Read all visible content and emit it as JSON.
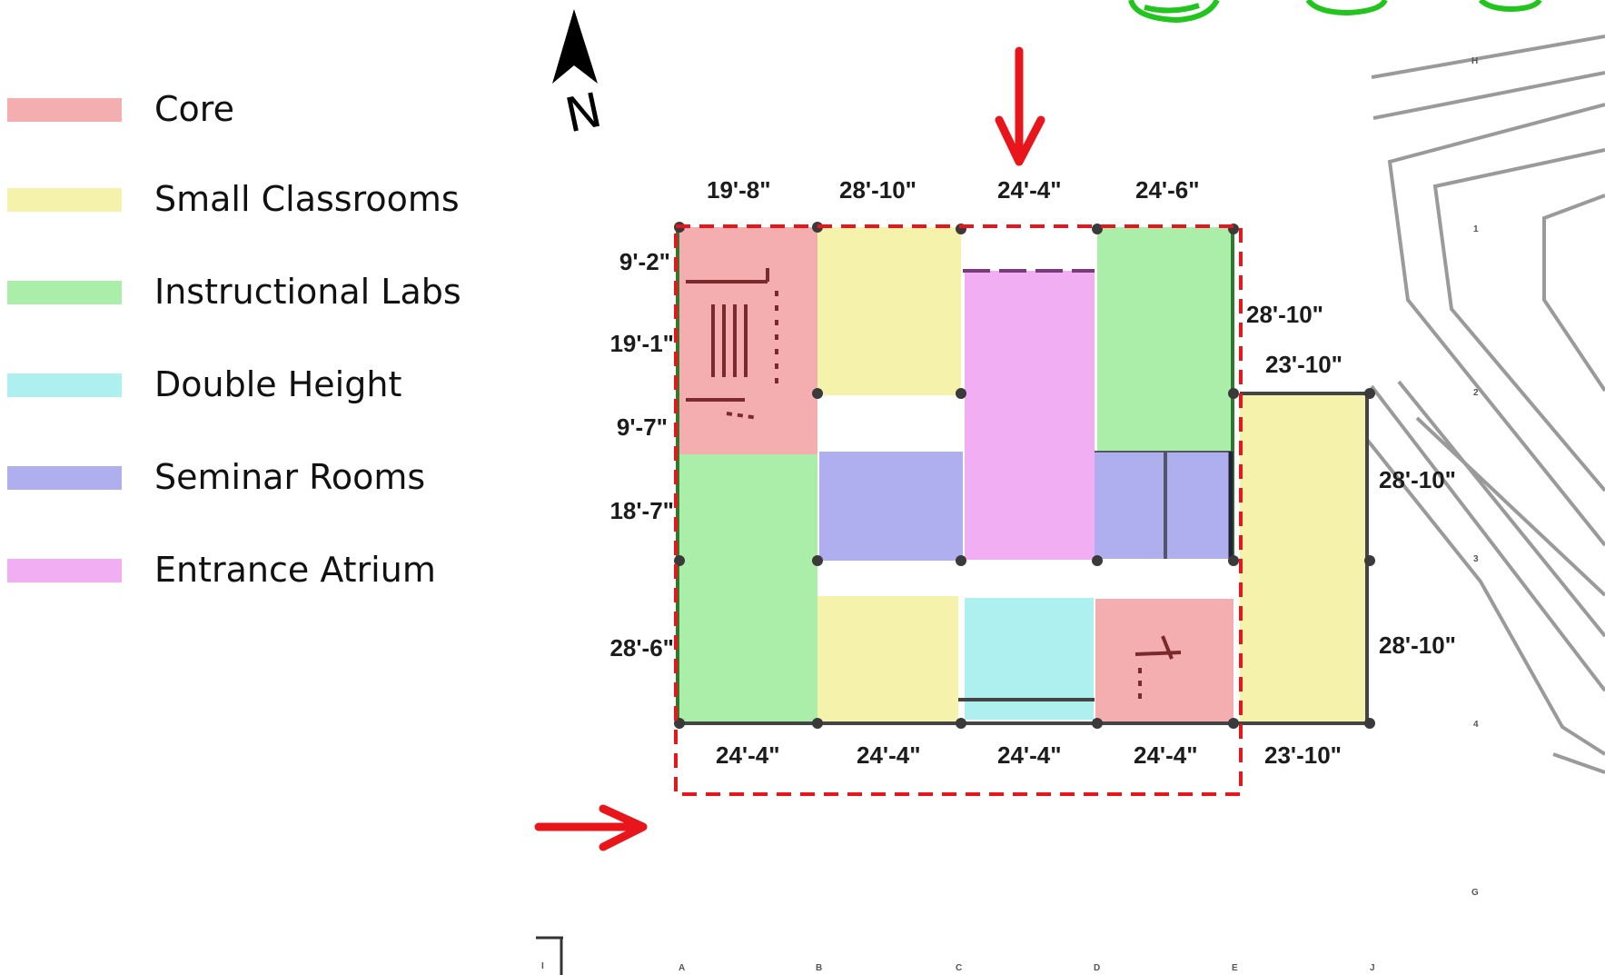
{
  "legend": {
    "items": [
      {
        "label": "Core",
        "color": "#f4aeb0"
      },
      {
        "label": "Small Classrooms",
        "color": "#f5f2ac"
      },
      {
        "label": "Instructional Labs",
        "color": "#abeeaa"
      },
      {
        "label": "Double Height",
        "color": "#aef0ef"
      },
      {
        "label": "Seminar Rooms",
        "color": "#afaff0"
      },
      {
        "label": "Entrance Atrium",
        "color": "#f2aef2"
      }
    ]
  },
  "north": {
    "label": "N"
  },
  "dimensions": {
    "top": [
      "19'-8\"",
      "28'-10\"",
      "24'-4\"",
      "24'-6\""
    ],
    "left": [
      "9'-2\"",
      "19'-1\"",
      "9'-7\"",
      "18'-7\"",
      "28'-6\""
    ],
    "bottom": [
      "24'-4\"",
      "24'-4\"",
      "24'-4\"",
      "24'-4\"",
      "23'-10\""
    ],
    "right_inner": [
      "28'-10\"",
      "23'-10\""
    ],
    "right_outer": [
      "28'-10\"",
      "28'-10\""
    ]
  },
  "grid_labels": {
    "columns": [
      "A",
      "B",
      "C",
      "D",
      "E",
      "J"
    ],
    "rows": [
      "H",
      "1",
      "2",
      "3",
      "4",
      "G"
    ],
    "corner": "I"
  },
  "colors": {
    "core": "#f4aeb0",
    "small_classrooms": "#f5f2ac",
    "instructional_labs": "#abeeaa",
    "double_height": "#aef0ef",
    "seminar_rooms": "#afaff0",
    "entrance_atrium": "#f2aef2",
    "highlight": "#e8161b"
  }
}
